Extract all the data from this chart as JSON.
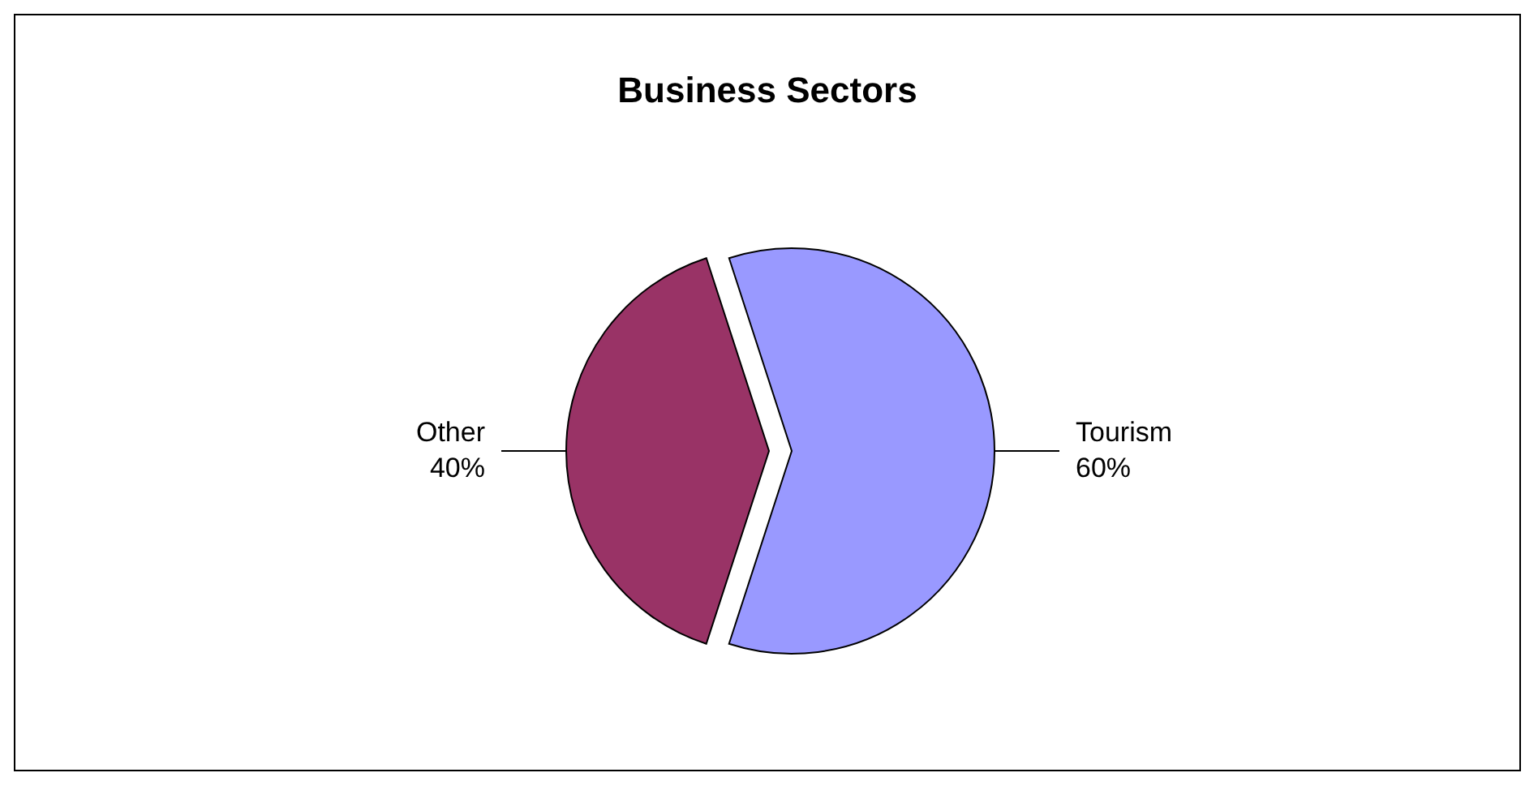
{
  "chart_data": {
    "type": "pie",
    "title": "Business Sectors",
    "categories": [
      "Tourism",
      "Other"
    ],
    "values": [
      60,
      40
    ],
    "colors": [
      "#9999ff",
      "#993366"
    ],
    "value_labels": [
      "60%",
      "40%"
    ]
  }
}
